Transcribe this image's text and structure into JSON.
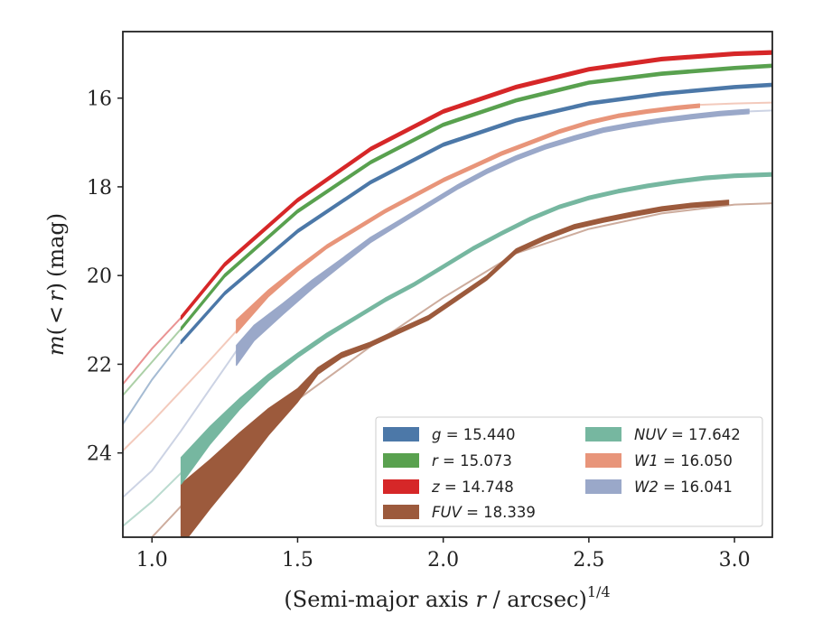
{
  "chart_data": {
    "type": "line",
    "xlabel": "(Semi-major axis r / arcsec)^{1/4}",
    "xlabel_parts": {
      "pre": "(Semi-major axis ",
      "var": "r",
      "post": " / arcsec)",
      "sup": "1/4"
    },
    "ylabel": "m(< r) (mag)",
    "ylabel_parts": {
      "var": "m",
      "open": "(",
      "lt": "<",
      "r": "r",
      "close": ")",
      "unit": "(mag)"
    },
    "xlim": [
      0.9,
      3.13
    ],
    "ylim": [
      25.9,
      14.5
    ],
    "y_inverted": true,
    "xticks": [
      1.0,
      1.5,
      2.0,
      2.5,
      3.0
    ],
    "xtick_labels": [
      "1.0",
      "1.5",
      "2.0",
      "2.5",
      "3.0"
    ],
    "yticks": [
      16,
      18,
      20,
      22,
      24
    ],
    "ytick_labels": [
      "16",
      "18",
      "20",
      "22",
      "24"
    ],
    "grid": false,
    "legend_position": "lower-right",
    "series": [
      {
        "name": "g",
        "value": "15.440",
        "color": "#4c78a8",
        "faint": [
          [
            0.9,
            23.35
          ],
          [
            1.0,
            22.35
          ],
          [
            1.1,
            21.5
          ]
        ],
        "x": [
          1.1,
          1.25,
          1.5,
          1.75,
          2.0,
          2.25,
          2.5,
          2.75,
          3.0,
          3.13
        ],
        "y": [
          21.5,
          20.4,
          19.0,
          17.9,
          17.05,
          16.5,
          16.12,
          15.9,
          15.75,
          15.7
        ],
        "width": [
          0.07,
          0.07,
          0.07,
          0.07,
          0.07,
          0.07,
          0.07,
          0.07,
          0.07,
          0.07
        ]
      },
      {
        "name": "r",
        "value": "15.073",
        "color": "#59a14f",
        "faint": [
          [
            0.9,
            22.7
          ],
          [
            1.0,
            21.95
          ],
          [
            1.1,
            21.2
          ]
        ],
        "x": [
          1.1,
          1.25,
          1.5,
          1.75,
          2.0,
          2.25,
          2.5,
          2.75,
          3.0,
          3.13
        ],
        "y": [
          21.2,
          20.0,
          18.55,
          17.45,
          16.6,
          16.05,
          15.65,
          15.45,
          15.32,
          15.27
        ],
        "width": [
          0.07,
          0.07,
          0.07,
          0.07,
          0.07,
          0.07,
          0.07,
          0.07,
          0.07,
          0.07
        ]
      },
      {
        "name": "z",
        "value": "14.748",
        "color": "#d62728",
        "faint": [
          [
            0.9,
            22.45
          ],
          [
            1.0,
            21.65
          ],
          [
            1.1,
            20.95
          ]
        ],
        "x": [
          1.1,
          1.25,
          1.5,
          1.75,
          2.0,
          2.25,
          2.5,
          2.75,
          3.0,
          3.13
        ],
        "y": [
          20.95,
          19.75,
          18.3,
          17.15,
          16.3,
          15.75,
          15.35,
          15.12,
          15.0,
          14.97
        ],
        "width": [
          0.08,
          0.08,
          0.08,
          0.08,
          0.08,
          0.08,
          0.08,
          0.08,
          0.08,
          0.08
        ]
      },
      {
        "name": "FUV",
        "value": "18.339",
        "color": "#9c5a3c",
        "faint": [
          [
            1.0,
            25.9
          ],
          [
            1.1,
            25.2
          ],
          [
            1.3,
            24.1
          ],
          [
            1.5,
            22.8
          ],
          [
            1.75,
            21.6
          ],
          [
            2.0,
            20.5
          ],
          [
            2.25,
            19.5
          ],
          [
            2.5,
            18.95
          ],
          [
            2.75,
            18.6
          ],
          [
            3.0,
            18.4
          ],
          [
            3.13,
            18.37
          ]
        ],
        "x": [
          1.1,
          1.2,
          1.3,
          1.4,
          1.5,
          1.57,
          1.65,
          1.75,
          1.85,
          1.95,
          2.05,
          2.15,
          2.25,
          2.35,
          2.45,
          2.55,
          2.65,
          2.75,
          2.85,
          2.98
        ],
        "y": [
          25.4,
          24.7,
          24.0,
          23.3,
          22.7,
          22.15,
          21.8,
          21.55,
          21.25,
          20.95,
          20.5,
          20.05,
          19.45,
          19.15,
          18.9,
          18.75,
          18.62,
          18.5,
          18.42,
          18.35
        ],
        "width": [
          1.4,
          1.1,
          0.9,
          0.6,
          0.3,
          0.15,
          0.12,
          0.1,
          0.1,
          0.1,
          0.1,
          0.1,
          0.1,
          0.1,
          0.1,
          0.1,
          0.1,
          0.1,
          0.1,
          0.1
        ]
      },
      {
        "name": "NUV",
        "value": "17.642",
        "color": "#76b7a0",
        "faint": [
          [
            0.9,
            25.65
          ],
          [
            1.0,
            25.1
          ],
          [
            1.1,
            24.45
          ]
        ],
        "x": [
          1.1,
          1.2,
          1.3,
          1.4,
          1.5,
          1.6,
          1.7,
          1.8,
          1.9,
          2.0,
          2.1,
          2.2,
          2.3,
          2.4,
          2.5,
          2.6,
          2.7,
          2.8,
          2.9,
          3.0,
          3.13
        ],
        "y": [
          24.4,
          23.6,
          22.9,
          22.3,
          21.8,
          21.35,
          20.95,
          20.55,
          20.2,
          19.8,
          19.4,
          19.05,
          18.72,
          18.45,
          18.25,
          18.1,
          17.98,
          17.88,
          17.8,
          17.75,
          17.72
        ],
        "width": [
          0.6,
          0.4,
          0.25,
          0.15,
          0.1,
          0.1,
          0.08,
          0.08,
          0.08,
          0.08,
          0.08,
          0.08,
          0.08,
          0.08,
          0.08,
          0.08,
          0.08,
          0.08,
          0.08,
          0.08,
          0.08
        ]
      },
      {
        "name": "W1",
        "value": "16.050",
        "color": "#e8957a",
        "faint": [
          [
            0.9,
            23.95
          ],
          [
            1.0,
            23.3
          ],
          [
            1.1,
            22.6
          ],
          [
            1.2,
            21.9
          ],
          [
            1.29,
            21.25
          ],
          [
            2.88,
            16.15
          ],
          [
            3.0,
            16.12
          ],
          [
            3.13,
            16.1
          ]
        ],
        "x": [
          1.29,
          1.4,
          1.5,
          1.6,
          1.7,
          1.8,
          1.9,
          2.0,
          2.1,
          2.2,
          2.3,
          2.4,
          2.5,
          2.6,
          2.7,
          2.8,
          2.88
        ],
        "y": [
          21.15,
          20.4,
          19.85,
          19.35,
          18.95,
          18.55,
          18.2,
          17.85,
          17.55,
          17.25,
          17.0,
          16.75,
          16.55,
          16.4,
          16.3,
          16.22,
          16.17
        ],
        "width": [
          0.3,
          0.15,
          0.1,
          0.08,
          0.08,
          0.08,
          0.08,
          0.08,
          0.08,
          0.08,
          0.08,
          0.08,
          0.08,
          0.08,
          0.08,
          0.08,
          0.08
        ]
      },
      {
        "name": "W2",
        "value": "16.041",
        "color": "#9aa8c9",
        "faint": [
          [
            0.9,
            25.0
          ],
          [
            1.0,
            24.4
          ],
          [
            1.1,
            23.5
          ],
          [
            1.2,
            22.55
          ],
          [
            1.29,
            21.7
          ],
          [
            3.05,
            16.3
          ],
          [
            3.13,
            16.28
          ]
        ],
        "x": [
          1.29,
          1.35,
          1.45,
          1.55,
          1.65,
          1.75,
          1.85,
          1.95,
          2.05,
          2.15,
          2.25,
          2.35,
          2.45,
          2.55,
          2.65,
          2.75,
          2.85,
          2.95,
          3.05
        ],
        "y": [
          21.8,
          21.3,
          20.75,
          20.2,
          19.7,
          19.2,
          18.8,
          18.4,
          18.0,
          17.65,
          17.35,
          17.1,
          16.9,
          16.72,
          16.6,
          16.5,
          16.42,
          16.35,
          16.3
        ],
        "width": [
          0.45,
          0.35,
          0.25,
          0.2,
          0.15,
          0.12,
          0.1,
          0.1,
          0.1,
          0.1,
          0.1,
          0.1,
          0.1,
          0.1,
          0.1,
          0.1,
          0.1,
          0.1,
          0.1
        ]
      }
    ],
    "legend_columns": [
      [
        "g",
        "r",
        "z",
        "FUV"
      ],
      [
        "NUV",
        "W1",
        "W2"
      ]
    ]
  }
}
